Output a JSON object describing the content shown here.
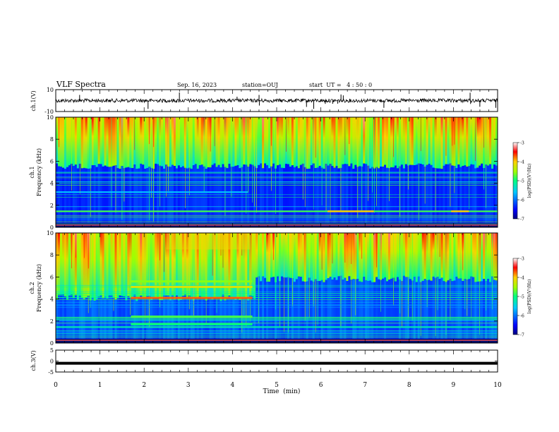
{
  "header": {
    "title": "VLF Spectra",
    "date": "Sep. 16, 2023",
    "station": "station=OUJ",
    "start": "start  UT =   4 : 50 : 0"
  },
  "chart_data": [
    {
      "type": "line",
      "panel": "ch1-waveform",
      "ylabel": "ch.1(V)",
      "ylim": [
        -10,
        10
      ],
      "y_ticks": [
        "10",
        "-10"
      ],
      "xlim": [
        0,
        10
      ],
      "baseline": 0
    },
    {
      "type": "heatmap",
      "panel": "ch1-spectrogram",
      "ylabel": "ch.1 Frequency  (kHz)",
      "ylabel_lines": [
        "ch.1",
        "Frequency  (kHz)"
      ],
      "xlim": [
        0,
        10
      ],
      "ylim": [
        0,
        10
      ],
      "y_ticks": [
        "0",
        "2",
        "4",
        "6",
        "8",
        "10"
      ],
      "colorbar": {
        "label": "log(PSD)(V²/Hz)",
        "range": [
          -7,
          -3
        ],
        "ticks": [
          "-3",
          "-4",
          "-5",
          "-6",
          "-7"
        ]
      }
    },
    {
      "type": "heatmap",
      "panel": "ch2-spectrogram",
      "ylabel": "ch.2 Frequency  (kHz)",
      "ylabel_lines": [
        "ch.2",
        "Frequency  (kHz)"
      ],
      "xlim": [
        0,
        10
      ],
      "ylim": [
        0,
        10
      ],
      "y_ticks": [
        "0",
        "2",
        "4",
        "6",
        "8",
        "10"
      ],
      "colorbar": {
        "label": "log(PSD)(V²/Hz)",
        "range": [
          -7,
          -3
        ],
        "ticks": [
          "-3",
          "-4",
          "-5",
          "-6",
          "-7"
        ]
      }
    },
    {
      "type": "line",
      "panel": "ch3-waveform",
      "ylabel": "ch.3(V)",
      "ylim": [
        -5,
        5
      ],
      "y_ticks": [
        "5",
        "0",
        "-5"
      ],
      "xlim": [
        0,
        10
      ],
      "baseline": -1
    }
  ],
  "x_axis": {
    "label": "Time  (min)",
    "ticks": [
      "0",
      "1",
      "2",
      "3",
      "4",
      "5",
      "6",
      "7",
      "8",
      "9",
      "10"
    ]
  }
}
